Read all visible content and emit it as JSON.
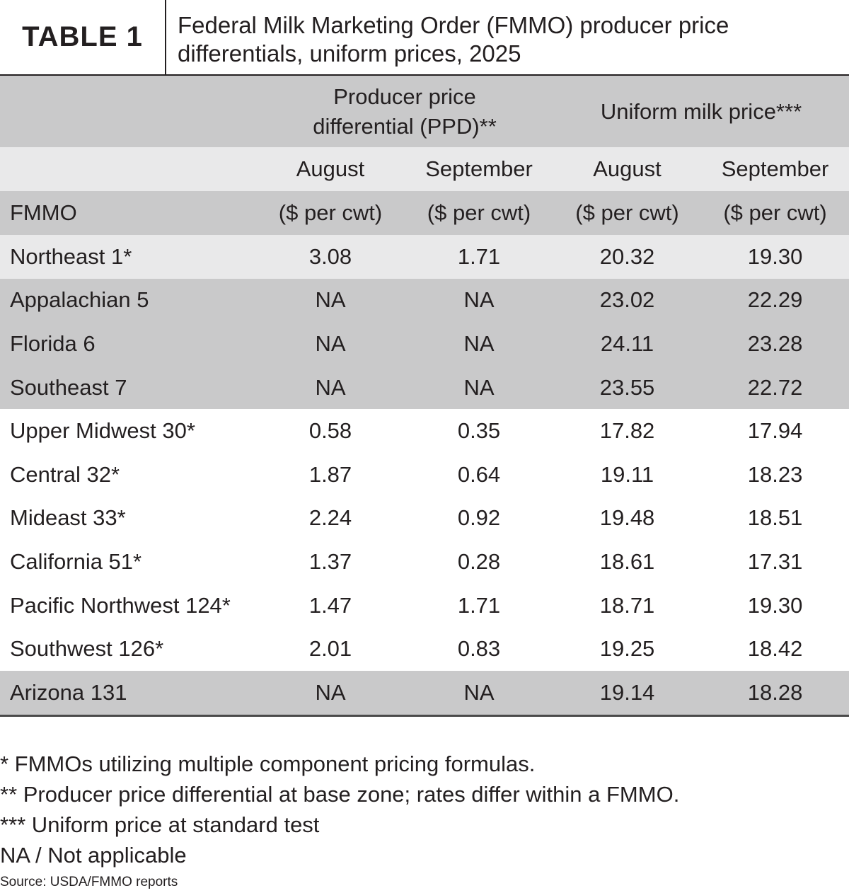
{
  "header": {
    "table_label": "TABLE 1",
    "title_line1": "Federal Milk Marketing Order (FMMO) producer price",
    "title_line2": "differentials, uniform prices, 2025"
  },
  "columns": {
    "ppd_group_line1": "Producer price",
    "ppd_group_line2": "differential (PPD)**",
    "uniform_group": "Uniform milk price***",
    "months": [
      "August",
      "September",
      "August",
      "September"
    ],
    "fmmo_label": "FMMO",
    "unit": "($ per cwt)"
  },
  "rows": [
    {
      "name": "Northeast 1*",
      "ppd_aug": "3.08",
      "ppd_sep": "1.71",
      "uni_aug": "20.32",
      "uni_sep": "19.30"
    },
    {
      "name": "Appalachian 5",
      "ppd_aug": "NA",
      "ppd_sep": "NA",
      "uni_aug": "23.02",
      "uni_sep": "22.29"
    },
    {
      "name": "Florida 6",
      "ppd_aug": "NA",
      "ppd_sep": "NA",
      "uni_aug": "24.11",
      "uni_sep": "23.28"
    },
    {
      "name": "Southeast 7",
      "ppd_aug": "NA",
      "ppd_sep": "NA",
      "uni_aug": "23.55",
      "uni_sep": "22.72"
    },
    {
      "name": "Upper Midwest 30*",
      "ppd_aug": "0.58",
      "ppd_sep": "0.35",
      "uni_aug": "17.82",
      "uni_sep": "17.94"
    },
    {
      "name": "Central 32*",
      "ppd_aug": "1.87",
      "ppd_sep": "0.64",
      "uni_aug": "19.11",
      "uni_sep": "18.23"
    },
    {
      "name": "Mideast 33*",
      "ppd_aug": "2.24",
      "ppd_sep": "0.92",
      "uni_aug": "19.48",
      "uni_sep": "18.51"
    },
    {
      "name": "California 51*",
      "ppd_aug": "1.37",
      "ppd_sep": "0.28",
      "uni_aug": "18.61",
      "uni_sep": "17.31"
    },
    {
      "name": "Pacific Northwest 124*",
      "ppd_aug": "1.47",
      "ppd_sep": "1.71",
      "uni_aug": "18.71",
      "uni_sep": "19.30"
    },
    {
      "name": "Southwest 126*",
      "ppd_aug": "2.01",
      "ppd_sep": "0.83",
      "uni_aug": "19.25",
      "uni_sep": "18.42"
    },
    {
      "name": "Arizona 131",
      "ppd_aug": "NA",
      "ppd_sep": "NA",
      "uni_aug": "19.14",
      "uni_sep": "18.28"
    }
  ],
  "notes": [
    "* FMMOs utilizing multiple component pricing formulas.",
    "** Producer price differential at base zone; rates differ within a FMMO.",
    "*** Uniform price at standard test",
    "NA / Not applicable"
  ],
  "source": "Source: USDA/FMMO reports",
  "colors": {
    "light_band": "#e9e9ea",
    "dark_band": "#c9c9ca",
    "text": "#231f20"
  }
}
